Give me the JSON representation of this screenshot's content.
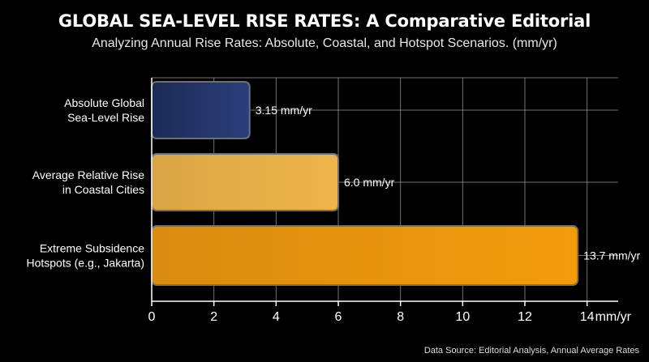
{
  "header": {
    "title": "GLOBAL SEA-LEVEL RISE RATES: A Comparative Editorial",
    "subtitle": "Analyzing Annual Rise Rates: Absolute, Coastal, and Hotspot Scenarios. (mm/yr)"
  },
  "footer": {
    "source": "Data Source: Editorial Analysis, Annual Average Rates"
  },
  "chart_data": {
    "type": "bar",
    "orientation": "horizontal",
    "title": "GLOBAL SEA-LEVEL RISE RATES: A Comparative Editorial",
    "subtitle": "Analyzing Annual Rise Rates: Absolute, Coastal, and Hotspot Scenarios. (mm/yr)",
    "categories": [
      [
        "Absolute Global",
        "Sea-Level Rise"
      ],
      [
        "Average Relative Rise",
        "in Coastal Cities"
      ],
      [
        "Extreme Subsidence",
        "Hotspots (e.g., Jakarta)"
      ]
    ],
    "values": [
      3.15,
      6.0,
      13.7
    ],
    "data_labels": [
      "3.15 mm/yr",
      "6.0 mm/yr",
      "13.7 mm/yr"
    ],
    "bar_colors": [
      [
        "#1b2a55",
        "#2c3f7a"
      ],
      [
        "#d9a545",
        "#f0b54a"
      ],
      [
        "#d98c10",
        "#f29c0c"
      ]
    ],
    "xlabel": "mm/yr",
    "xlim": [
      0,
      15
    ],
    "xticks": [
      "0",
      "2",
      "4",
      "6",
      "8",
      "10",
      "12",
      "14"
    ],
    "grid": true,
    "background": "#000000"
  }
}
